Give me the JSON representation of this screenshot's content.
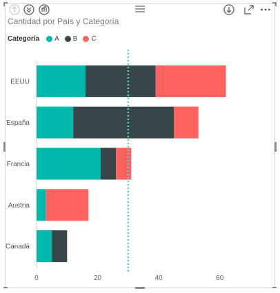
{
  "chart_data": {
    "type": "bar",
    "orientation": "horizontal",
    "stacked": true,
    "title": "Cantidad por País y Categoría",
    "legend_title": "Categoría",
    "legend_placement": "top-left",
    "categories": [
      "EEUU",
      "España",
      "Francia",
      "Austria",
      "Canadá"
    ],
    "series": [
      {
        "name": "A",
        "color": "#01B8AA",
        "values": [
          16,
          12,
          21,
          3,
          5
        ]
      },
      {
        "name": "B",
        "color": "#374649",
        "values": [
          23,
          33,
          5,
          0,
          5
        ]
      },
      {
        "name": "C",
        "color": "#FD625E",
        "values": [
          23,
          8,
          5,
          14,
          0
        ]
      }
    ],
    "xlim": [
      0,
      70
    ],
    "xticks": [
      0,
      20,
      40,
      60
    ],
    "xlabel": "",
    "ylabel": "",
    "grid": false,
    "reference_line": {
      "value": 30,
      "color": "#4FCFD6",
      "style": "dotted"
    }
  },
  "toolbar": {
    "icons": [
      "drill-up-icon",
      "drill-down-all-icon",
      "expand-hierarchy-icon",
      "drag-handle-icon",
      "drill-mode-icon",
      "focus-mode-icon",
      "more-options-icon"
    ]
  }
}
